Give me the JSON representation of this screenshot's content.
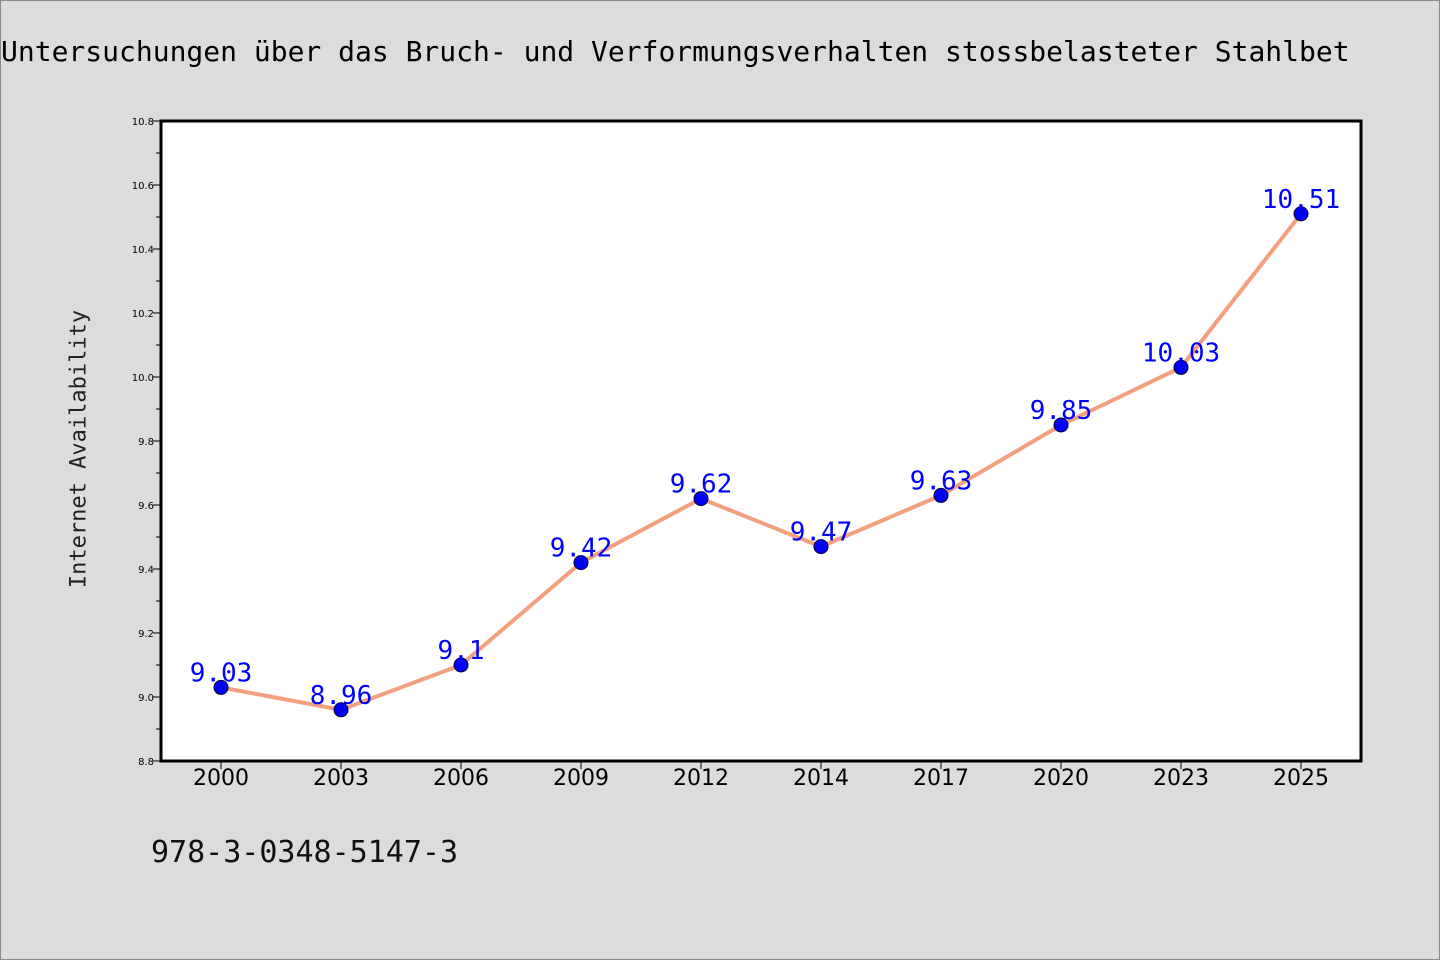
{
  "header": {
    "title": "Untersuchungen über das Bruch- und Verformungsverhalten stossbelasteter Stahlbet"
  },
  "footer": {
    "isbn": "978-3-0348-5147-3"
  },
  "colors": {
    "background": "#dcdcdc",
    "plot_background": "#ffffff",
    "line": "#f4a07e",
    "marker": "#0000ff",
    "data_label": "#0000ff"
  },
  "chart_data": {
    "type": "line",
    "title": "Untersuchungen über das Bruch- und Verformungsverhalten stossbelasteter Stahlbet",
    "xlabel": "",
    "ylabel": "Internet Availability",
    "categories": [
      "2000",
      "2003",
      "2006",
      "2009",
      "2012",
      "2014",
      "2017",
      "2020",
      "2023",
      "2025"
    ],
    "series": [
      {
        "values": [
          9.03,
          8.96,
          9.1,
          9.42,
          9.62,
          9.47,
          9.63,
          9.85,
          10.03,
          10.51
        ],
        "labels": [
          "9.03",
          "8.96",
          "9.1",
          "9.42",
          "9.62",
          "9.47",
          "9.63",
          "9.85",
          "10.03",
          "10.51"
        ]
      }
    ],
    "ylim": [
      8.8,
      10.8
    ],
    "yticks": [
      "8.8",
      "9.0",
      "9.2",
      "9.4",
      "9.6",
      "9.8",
      "10.0",
      "10.2",
      "10.4",
      "10.6",
      "10.8"
    ],
    "grid": false,
    "legend": "none"
  }
}
